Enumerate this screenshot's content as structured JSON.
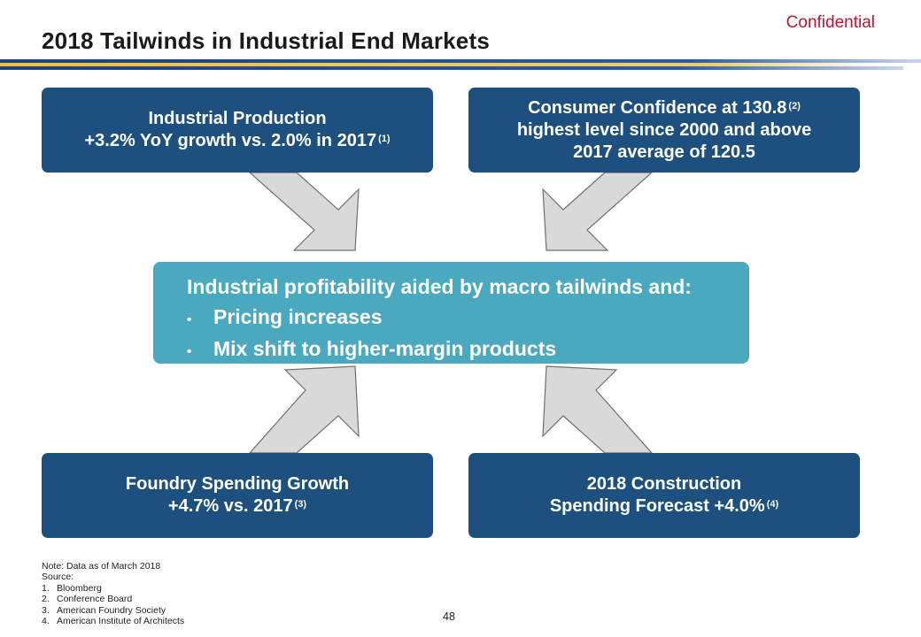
{
  "header": {
    "confidential": "Confidential",
    "title": "2018 Tailwinds in Industrial End Markets"
  },
  "colors": {
    "box_blue": "#1d507f",
    "center_teal": "#4aa8bf",
    "rule_blue": "#1b3f8b",
    "rule_gold": "#f2c12e",
    "arrow_fill": "#d9d9d9",
    "confidential_red": "#c8102e"
  },
  "boxes": {
    "top_left": {
      "line1": "Industrial Production",
      "line2": "+3.2% YoY growth vs. 2.0% in 2017",
      "ref": "(1)"
    },
    "top_right": {
      "line1": "Consumer Confidence at 130.8",
      "ref": "(2)",
      "line2": "highest level since 2000 and above",
      "line3": "2017 average of 120.5"
    },
    "bottom_left": {
      "line1": "Foundry Spending Growth",
      "line2": "+4.7% vs. 2017",
      "ref": "(3)"
    },
    "bottom_right": {
      "line1": "2018 Construction",
      "line2": "Spending Forecast +4.0%",
      "ref": "(4)"
    }
  },
  "center": {
    "heading": "Industrial profitability aided by macro tailwinds and:",
    "bullet_char": "•",
    "bullets": [
      "Pricing increases",
      "Mix shift to higher-margin products"
    ]
  },
  "footnotes": {
    "note": "Note:  Data as of March 2018",
    "source_label": "Source:",
    "sources": [
      {
        "num": "1.",
        "text": "Bloomberg"
      },
      {
        "num": "2.",
        "text": "Conference Board"
      },
      {
        "num": "3.",
        "text": "American Foundry Society"
      },
      {
        "num": "4.",
        "text": "American Institute of Architects"
      }
    ]
  },
  "page_number": "48"
}
